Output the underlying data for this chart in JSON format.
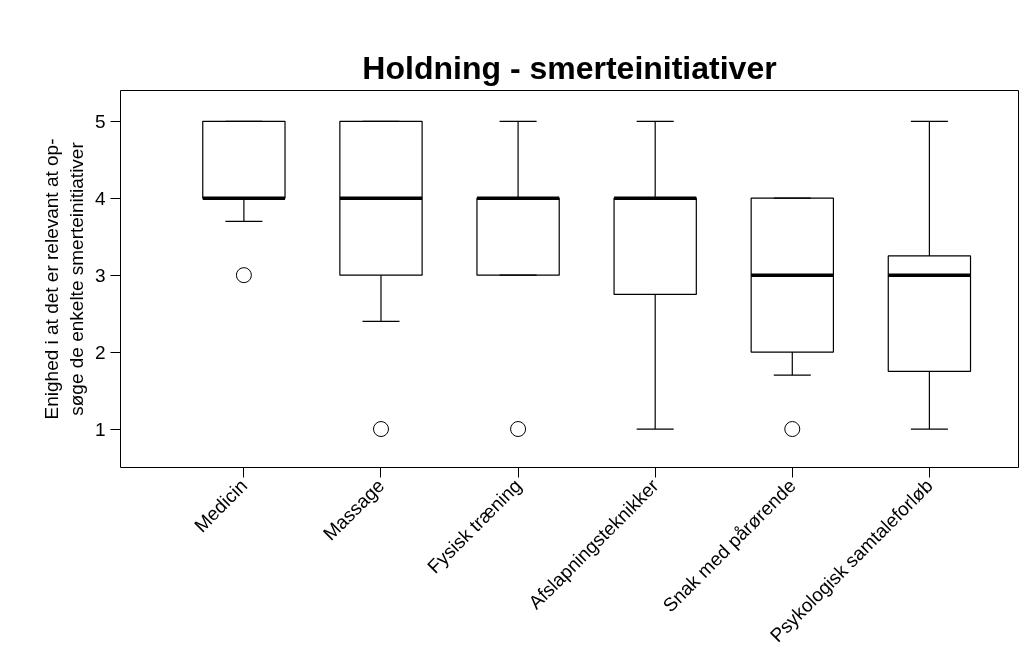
{
  "chart_data": {
    "type": "box",
    "title": "Holdning - smerteinitiativer",
    "ylabel": "Enighed i at det er relevant at op-\nsøge de enkelte smerteinitiativer",
    "categories": [
      "Medicin",
      "Massage",
      "Fysisk træning",
      "Afslapningsteknikker",
      "Snak med pårørende",
      "Psykologisk samtaleforløb"
    ],
    "boxes": [
      {
        "low": 3.7,
        "q1": 4,
        "median": 4,
        "q3": 5,
        "high": 5,
        "outliers": [
          3
        ]
      },
      {
        "low": 2.4,
        "q1": 3,
        "median": 4,
        "q3": 5,
        "high": 5,
        "outliers": [
          1
        ]
      },
      {
        "low": 3,
        "q1": 3,
        "median": 4,
        "q3": 4,
        "high": 5,
        "outliers": [
          1
        ]
      },
      {
        "low": 1,
        "q1": 2.75,
        "median": 4,
        "q3": 4,
        "high": 5
      },
      {
        "low": 1.7,
        "q1": 2,
        "median": 3,
        "q3": 4,
        "high": 4,
        "outliers": [
          1
        ]
      },
      {
        "low": 1,
        "q1": 1.75,
        "median": 3,
        "q3": 3.25,
        "high": 5
      }
    ],
    "ylim": [
      0.5,
      5.4
    ],
    "yticks": [
      1,
      2,
      3,
      4,
      5
    ],
    "grid": false
  }
}
